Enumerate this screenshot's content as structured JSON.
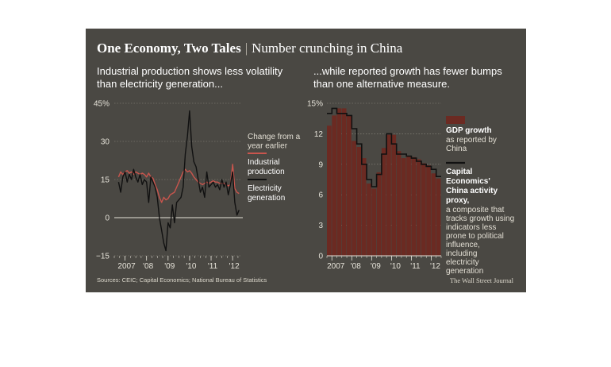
{
  "header": {
    "title_bold": "One Economy, Two Tales",
    "separator": "|",
    "title_sub": "Number crunching in China"
  },
  "footer": {
    "sources": "Sources: CEIC; Capital Economics; National Bureau of Statistics",
    "credit": "The Wall Street Journal"
  },
  "colors": {
    "panel": "#4a4843",
    "industrial": "#c9554d",
    "electricity": "#111111",
    "gdp_bar": "#6b2a22",
    "proxy": "#111111",
    "axis": "#e6e3d9"
  },
  "chart_data": [
    {
      "type": "line",
      "title": "Industrial production shows less volatility than electricity generation...",
      "ylim": [
        -15,
        45
      ],
      "yticks": [
        "45%",
        "30",
        "15",
        "0",
        "−15"
      ],
      "ytick_values": [
        45,
        30,
        15,
        0,
        -15
      ],
      "xticks": [
        "2007",
        "'08",
        "'09",
        "'10",
        "'11",
        "'12"
      ],
      "xtick_positions": [
        2007,
        2008,
        2009,
        2010,
        2011,
        2012
      ],
      "xlim": [
        2006.5,
        2012.4
      ],
      "grid": true,
      "legend_position": "right",
      "legend_note": "Change from a year earlier",
      "series": [
        {
          "name": "Industrial production",
          "color": "#c9554d",
          "points": [
            [
              2006.7,
              16
            ],
            [
              2006.8,
              18
            ],
            [
              2006.9,
              17
            ],
            [
              2007.0,
              18
            ],
            [
              2007.1,
              18.5
            ],
            [
              2007.2,
              17.5
            ],
            [
              2007.3,
              18
            ],
            [
              2007.4,
              17
            ],
            [
              2007.5,
              18
            ],
            [
              2007.6,
              17.5
            ],
            [
              2007.7,
              17
            ],
            [
              2007.8,
              17.5
            ],
            [
              2007.9,
              17
            ],
            [
              2008.0,
              16
            ],
            [
              2008.1,
              17.5
            ],
            [
              2008.2,
              16
            ],
            [
              2008.3,
              15.5
            ],
            [
              2008.4,
              13
            ],
            [
              2008.5,
              11
            ],
            [
              2008.6,
              8
            ],
            [
              2008.7,
              6
            ],
            [
              2008.8,
              8
            ],
            [
              2008.9,
              7
            ],
            [
              2009.0,
              7.5
            ],
            [
              2009.1,
              9
            ],
            [
              2009.2,
              9.5
            ],
            [
              2009.3,
              10
            ],
            [
              2009.4,
              12
            ],
            [
              2009.5,
              14
            ],
            [
              2009.6,
              16
            ],
            [
              2009.7,
              18
            ],
            [
              2009.8,
              19
            ],
            [
              2009.9,
              18
            ],
            [
              2010.0,
              18.5
            ],
            [
              2010.1,
              17.5
            ],
            [
              2010.2,
              16
            ],
            [
              2010.3,
              15
            ],
            [
              2010.4,
              14
            ],
            [
              2010.5,
              13.5
            ],
            [
              2010.6,
              13
            ],
            [
              2010.7,
              13.5
            ],
            [
              2010.8,
              14
            ],
            [
              2010.9,
              13.5
            ],
            [
              2011.0,
              14
            ],
            [
              2011.1,
              14.5
            ],
            [
              2011.2,
              14
            ],
            [
              2011.3,
              14
            ],
            [
              2011.4,
              13.5
            ],
            [
              2011.5,
              13.5
            ],
            [
              2011.6,
              13.5
            ],
            [
              2011.7,
              13
            ],
            [
              2011.8,
              12.5
            ],
            [
              2011.9,
              13
            ],
            [
              2012.0,
              21
            ],
            [
              2012.1,
              11.5
            ],
            [
              2012.2,
              10
            ],
            [
              2012.3,
              9.5
            ]
          ]
        },
        {
          "name": "Electricity generation",
          "color": "#111111",
          "points": [
            [
              2006.7,
              14
            ],
            [
              2006.8,
              10
            ],
            [
              2006.9,
              16
            ],
            [
              2007.0,
              18
            ],
            [
              2007.1,
              14
            ],
            [
              2007.2,
              17
            ],
            [
              2007.3,
              15
            ],
            [
              2007.4,
              19
            ],
            [
              2007.5,
              16
            ],
            [
              2007.6,
              14
            ],
            [
              2007.7,
              17
            ],
            [
              2007.8,
              13
            ],
            [
              2007.9,
              15
            ],
            [
              2008.0,
              14
            ],
            [
              2008.1,
              6
            ],
            [
              2008.2,
              16
            ],
            [
              2008.3,
              14
            ],
            [
              2008.4,
              12
            ],
            [
              2008.5,
              8
            ],
            [
              2008.6,
              0
            ],
            [
              2008.7,
              -5
            ],
            [
              2008.8,
              -10
            ],
            [
              2008.9,
              -13
            ],
            [
              2009.0,
              -2
            ],
            [
              2009.1,
              -4
            ],
            [
              2009.2,
              5
            ],
            [
              2009.3,
              -2
            ],
            [
              2009.4,
              6
            ],
            [
              2009.5,
              7
            ],
            [
              2009.6,
              8
            ],
            [
              2009.7,
              12
            ],
            [
              2009.8,
              25
            ],
            [
              2009.9,
              32
            ],
            [
              2010.0,
              42
            ],
            [
              2010.1,
              28
            ],
            [
              2010.2,
              22
            ],
            [
              2010.3,
              20
            ],
            [
              2010.4,
              15
            ],
            [
              2010.5,
              10
            ],
            [
              2010.6,
              12
            ],
            [
              2010.7,
              8
            ],
            [
              2010.8,
              18
            ],
            [
              2010.9,
              12
            ],
            [
              2011.0,
              13
            ],
            [
              2011.1,
              14
            ],
            [
              2011.2,
              12
            ],
            [
              2011.3,
              13
            ],
            [
              2011.4,
              11
            ],
            [
              2011.5,
              15
            ],
            [
              2011.6,
              12
            ],
            [
              2011.7,
              14
            ],
            [
              2011.8,
              9
            ],
            [
              2011.9,
              13
            ],
            [
              2012.0,
              18
            ],
            [
              2012.1,
              6
            ],
            [
              2012.2,
              1
            ],
            [
              2012.3,
              3
            ]
          ]
        }
      ]
    },
    {
      "type": "bar",
      "title": "...while reported growth has fewer bumps than one alternative measure.",
      "ylim": [
        0,
        15
      ],
      "yticks": [
        "15%",
        "12",
        "9",
        "6",
        "3",
        "0"
      ],
      "ytick_values": [
        15,
        12,
        9,
        6,
        3,
        0
      ],
      "xticks": [
        "2007",
        "'08",
        "'09",
        "'10",
        "'11",
        "'12"
      ],
      "xtick_positions": [
        2007,
        2008,
        2009,
        2010,
        2011,
        2012
      ],
      "xlim": [
        2006.75,
        2012.5
      ],
      "grid": true,
      "legend_position": "right",
      "categories": [
        "2006Q4",
        "2007Q1",
        "2007Q2",
        "2007Q3",
        "2007Q4",
        "2008Q1",
        "2008Q2",
        "2008Q3",
        "2008Q4",
        "2009Q1",
        "2009Q2",
        "2009Q3",
        "2009Q4",
        "2010Q1",
        "2010Q2",
        "2010Q3",
        "2010Q4",
        "2011Q1",
        "2011Q2",
        "2011Q3",
        "2011Q4",
        "2012Q1",
        "2012Q2"
      ],
      "series": [
        {
          "name": "GDP growth",
          "name_detail": "as reported by China",
          "color": "#6b2a22",
          "values": [
            12.8,
            13.8,
            14.5,
            14.5,
            13.8,
            11.3,
            10.7,
            9.6,
            7.1,
            6.6,
            8.2,
            10.6,
            11.9,
            11.9,
            10.3,
            9.6,
            9.8,
            9.7,
            9.5,
            9.1,
            8.9,
            8.1,
            7.6
          ]
        },
        {
          "name": "Capital Economics' China activity proxy,",
          "name_detail": "a composite that tracks growth using indicators less prone to political influence, including electricity generation",
          "color": "#111111",
          "values": [
            14.0,
            14.5,
            14.0,
            14.0,
            13.8,
            12.5,
            11.0,
            9.0,
            7.5,
            6.8,
            8.0,
            10.0,
            12.0,
            11.0,
            10.0,
            10.0,
            9.8,
            9.6,
            9.3,
            9.0,
            8.8,
            8.5,
            7.8
          ]
        }
      ]
    }
  ]
}
